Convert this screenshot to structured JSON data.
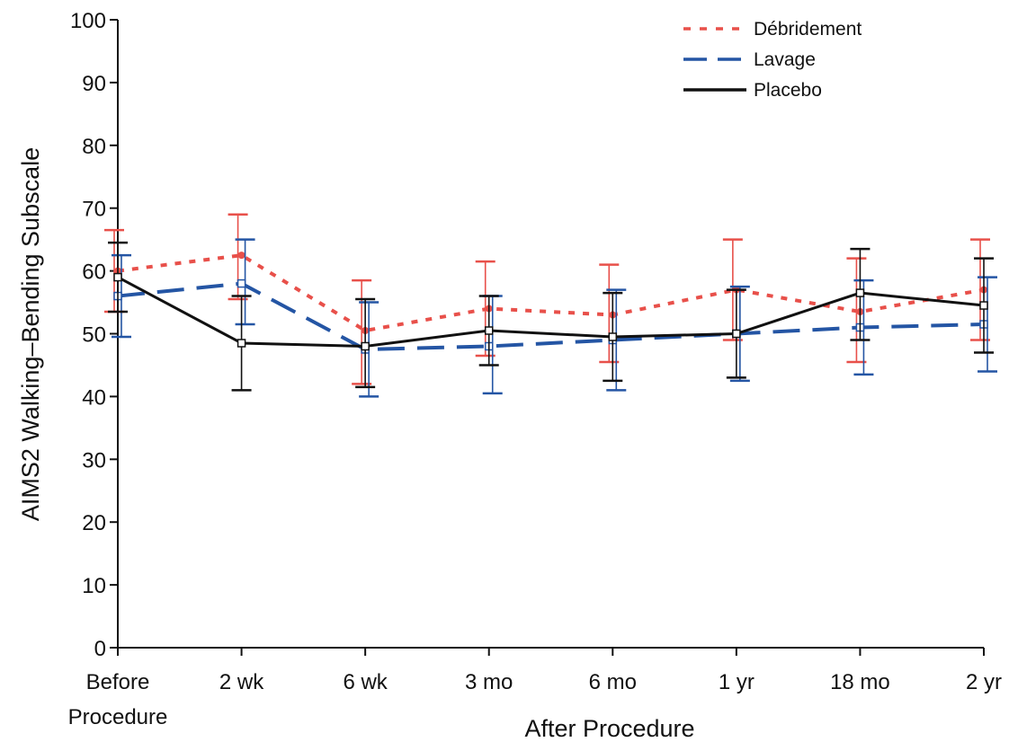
{
  "chart_data": {
    "type": "line",
    "ylabel": "AIMS2 Walking–Bending Subscale",
    "xlabel": "After Procedure",
    "categories": [
      "Before\nProcedure",
      "2 wk",
      "6 wk",
      "3 mo",
      "6 mo",
      "1 yr",
      "18 mo",
      "2 yr"
    ],
    "ylim": [
      0,
      100
    ],
    "yticks": [
      0,
      10,
      20,
      30,
      40,
      50,
      60,
      70,
      80,
      90,
      100
    ],
    "grid": false,
    "legend_position": "top-right",
    "series": [
      {
        "name": "Débridement",
        "color": "#e8504a",
        "dash": "dotted",
        "values": [
          60,
          62.5,
          50.5,
          54,
          53,
          57,
          53.5,
          57
        ],
        "error_low": [
          53.5,
          55.5,
          42,
          46.5,
          45.5,
          49,
          45.5,
          49
        ],
        "error_high": [
          66.5,
          69,
          58.5,
          61.5,
          61,
          65,
          62,
          65
        ]
      },
      {
        "name": "Lavage",
        "color": "#2455a4",
        "dash": "dashed",
        "values": [
          56,
          58,
          47.5,
          48,
          49,
          50,
          51,
          51.5
        ],
        "error_low": [
          49.5,
          51.5,
          40,
          40.5,
          41,
          42.5,
          43.5,
          44
        ],
        "error_high": [
          62.5,
          65,
          55,
          56,
          57,
          57.5,
          58.5,
          59
        ]
      },
      {
        "name": "Placebo",
        "color": "#111111",
        "dash": "solid",
        "values": [
          59,
          48.5,
          48,
          50.5,
          49.5,
          50,
          56.5,
          54.5
        ],
        "error_low": [
          53.5,
          41,
          41.5,
          45,
          42.5,
          43,
          49,
          47
        ],
        "error_high": [
          64.5,
          56,
          55.5,
          56,
          56.5,
          57,
          63.5,
          62
        ]
      }
    ]
  }
}
